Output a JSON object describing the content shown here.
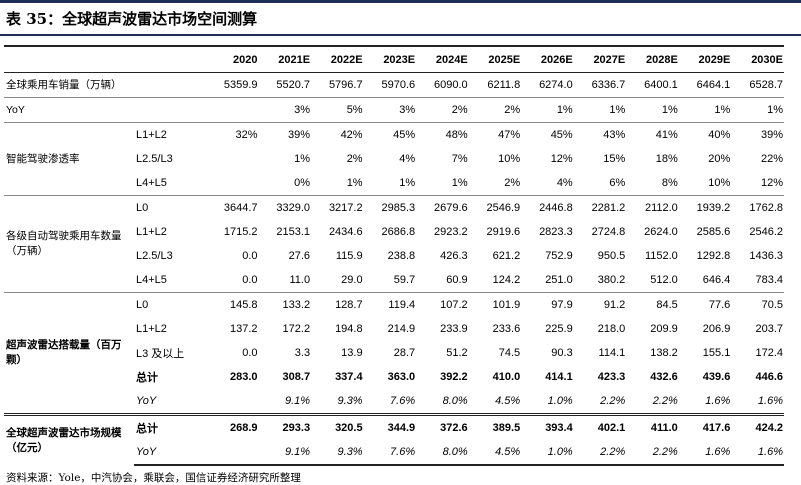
{
  "title": "表 35：全球超声波雷达市场空间测算",
  "table": {
    "header": [
      "2020",
      "2021E",
      "2022E",
      "2023E",
      "2024E",
      "2025E",
      "2026E",
      "2027E",
      "2028E",
      "2029E",
      "2030E"
    ],
    "groups": [
      {
        "label": "全球乘用车销量（万辆）",
        "rows": [
          {
            "cells": [
              "5359.9",
              "5520.7",
              "5796.7",
              "5970.6",
              "6090.0",
              "6211.8",
              "6274.0",
              "6336.7",
              "6400.1",
              "6464.1",
              "6528.7"
            ]
          }
        ]
      },
      {
        "label": "YoY",
        "rows": [
          {
            "cells": [
              null,
              "3%",
              "5%",
              "3%",
              "2%",
              "2%",
              "1%",
              "1%",
              "1%",
              "1%",
              "1%"
            ]
          }
        ]
      },
      {
        "label": "智能驾驶渗透率",
        "rows": [
          {
            "label": "L1+L2",
            "cells": [
              "32%",
              "39%",
              "42%",
              "45%",
              "48%",
              "47%",
              "45%",
              "43%",
              "41%",
              "40%",
              "39%"
            ]
          },
          {
            "label": "L2.5/L3",
            "cells": [
              null,
              "1%",
              "2%",
              "4%",
              "7%",
              "10%",
              "12%",
              "15%",
              "18%",
              "20%",
              "22%"
            ]
          },
          {
            "label": "L4+L5",
            "cells": [
              null,
              "0%",
              "1%",
              "1%",
              "1%",
              "2%",
              "4%",
              "6%",
              "8%",
              "10%",
              "12%"
            ]
          }
        ]
      },
      {
        "label": "各级自动驾驶乘用车数量（万辆）",
        "rows": [
          {
            "label": "L0",
            "cells": [
              "3644.7",
              "3329.0",
              "3217.2",
              "2985.3",
              "2679.6",
              "2546.9",
              "2446.8",
              "2281.2",
              "2112.0",
              "1939.2",
              "1762.8"
            ]
          },
          {
            "label": "L1+L2",
            "cells": [
              "1715.2",
              "2153.1",
              "2434.6",
              "2686.8",
              "2923.2",
              "2919.6",
              "2823.3",
              "2724.8",
              "2624.0",
              "2585.6",
              "2546.2"
            ]
          },
          {
            "label": "L2.5/L3",
            "cells": [
              "0.0",
              "27.6",
              "115.9",
              "238.8",
              "426.3",
              "621.2",
              "752.9",
              "950.5",
              "1152.0",
              "1292.8",
              "1436.3"
            ]
          },
          {
            "label": "L4+L5",
            "cells": [
              "0.0",
              "11.0",
              "29.0",
              "59.7",
              "60.9",
              "124.2",
              "251.0",
              "380.2",
              "512.0",
              "646.4",
              "783.4"
            ]
          }
        ]
      },
      {
        "label": "超声波雷达搭载量（百万颗）",
        "rows": [
          {
            "label": "L0",
            "cells": [
              "145.8",
              "133.2",
              "128.7",
              "119.4",
              "107.2",
              "101.9",
              "97.9",
              "91.2",
              "84.5",
              "77.6",
              "70.5"
            ]
          },
          {
            "label": "L1+L2",
            "cells": [
              "137.2",
              "172.2",
              "194.8",
              "214.9",
              "233.9",
              "233.6",
              "225.9",
              "218.0",
              "209.9",
              "206.9",
              "203.7"
            ]
          },
          {
            "label": "L3 及以上",
            "cells": [
              "0.0",
              "3.3",
              "13.9",
              "28.7",
              "51.2",
              "74.5",
              "90.3",
              "114.1",
              "138.2",
              "155.1",
              "172.4"
            ]
          },
          {
            "label": "总计",
            "cells": [
              "283.0",
              "308.7",
              "337.4",
              "363.0",
              "392.2",
              "410.0",
              "414.1",
              "423.3",
              "432.6",
              "439.6",
              "446.6"
            ]
          },
          {
            "label": "YoY",
            "cells": [
              null,
              "9.1%",
              "9.3%",
              "7.6%",
              "8.0%",
              "4.5%",
              "1.0%",
              "2.2%",
              "2.2%",
              "1.6%",
              "1.6%"
            ]
          }
        ]
      },
      {
        "label": "全球超声波雷达市场规模（亿元）",
        "rows": [
          {
            "label": "总计",
            "cells": [
              "268.9",
              "293.3",
              "320.5",
              "344.9",
              "372.6",
              "389.5",
              "393.4",
              "402.1",
              "411.0",
              "417.6",
              "424.2"
            ]
          },
          {
            "label": "YoY",
            "cells": [
              null,
              "9.1%",
              "9.3%",
              "7.6%",
              "8.0%",
              "4.5%",
              "1.0%",
              "2.2%",
              "2.2%",
              "1.6%",
              "1.6%"
            ]
          }
        ]
      }
    ]
  },
  "source": "资料来源：Yole，中汽协会，乘联会，国信证券经济研究所整理"
}
